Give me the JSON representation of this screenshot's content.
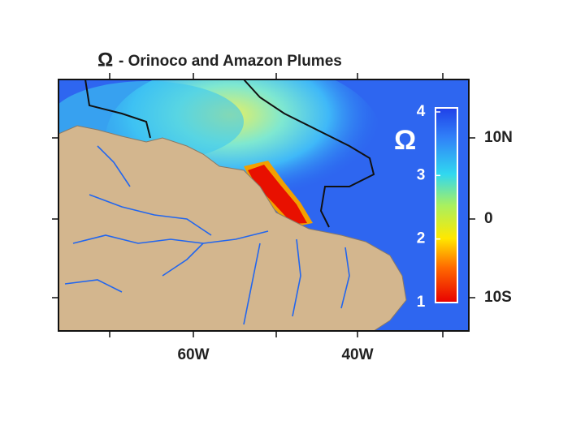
{
  "title": "- Orinoco and Amazon Plumes",
  "title_symbol": "Ω",
  "map": {
    "lon_labels": [
      "60W",
      "40W"
    ],
    "lat_labels": [
      "10N",
      "0",
      "10S"
    ]
  },
  "colorbar": {
    "label": "Ω",
    "lim": [
      1,
      4
    ],
    "ticks": [
      1,
      2,
      3,
      4
    ]
  }
}
